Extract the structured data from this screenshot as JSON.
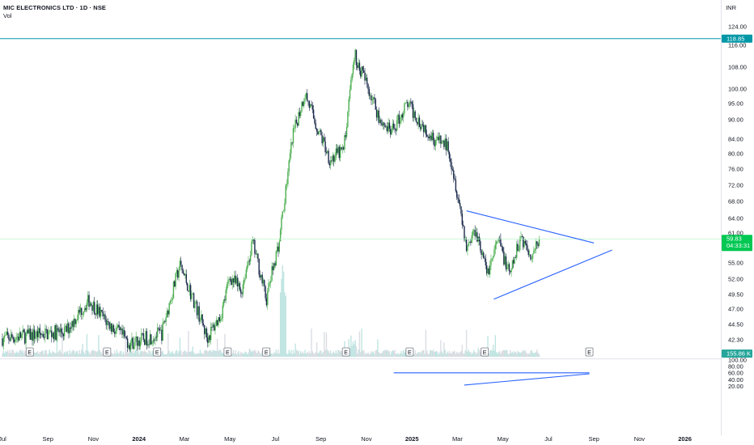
{
  "header": {
    "title": "MIC ELECTRONICS LTD · 1D · NSE",
    "volume_label": "Vol",
    "currency": "INR"
  },
  "colors": {
    "up": "#26a69a",
    "down": "#131722",
    "candle_up": "#4caf50",
    "candle_down": "#1a2a4a",
    "resistance": "#0097a7",
    "trendline": "#2962ff",
    "price_badge": "#00c853",
    "volume_badge": "#26a69a"
  },
  "chart_data": {
    "type": "candlestick",
    "symbol": "MIC ELECTRONICS LTD",
    "interval": "1D",
    "exchange": "NSE",
    "price_axis": {
      "ticks": [
        124.0,
        116.0,
        108.0,
        100.0,
        95.0,
        90.0,
        84.0,
        80.0,
        76.0,
        72.0,
        68.0,
        64.0,
        61.0,
        55.0,
        52.0,
        49.5,
        47.0,
        44.5,
        42.3
      ],
      "tick_labels": [
        "124.00",
        "116.00",
        "108.00",
        "100.00",
        "95.00",
        "90.00",
        "84.00",
        "80.00",
        "76.00",
        "72.00",
        "68.00",
        "64.00",
        "61.00",
        "55.00",
        "52.00",
        "49.50",
        "47.00",
        "44.50",
        "42.30"
      ],
      "range": [
        40.0,
        126.0
      ]
    },
    "oscillator_axis": {
      "ticks": [
        100.0,
        80.0,
        60.0,
        40.0,
        20.0
      ],
      "tick_labels": [
        "100.00",
        "80.00",
        "60.00",
        "40.00",
        "20.00"
      ],
      "range": [
        14,
        104
      ]
    },
    "time_axis": {
      "ticks": [
        "Jul",
        "Sep",
        "Nov",
        "2024",
        "Mar",
        "May",
        "Jul",
        "Sep",
        "Nov",
        "2025",
        "Mar",
        "May",
        "Jul",
        "Sep",
        "Nov",
        "2026"
      ],
      "tick_months": [
        0,
        2,
        4,
        6,
        8,
        10,
        12,
        14,
        16,
        18,
        20,
        22,
        24,
        26,
        28,
        30
      ],
      "bold_ticks": [
        "2024",
        "2025",
        "2026"
      ]
    },
    "last_price": {
      "value": 59.83,
      "label": "59.83",
      "countdown": "04:33:31"
    },
    "resistance": {
      "value": 118.85,
      "label": "118.85"
    },
    "volume_badge": {
      "label": "155.86 K"
    },
    "earnings_markers": {
      "label": "E",
      "months": [
        1.2,
        4.6,
        6.8,
        9.9,
        11.6,
        15.1,
        17.9,
        21.2,
        25.8
      ]
    },
    "key_levels_path": [
      {
        "m": 0.0,
        "p": 42.5
      },
      {
        "m": 2.8,
        "p": 43.5
      },
      {
        "m": 3.8,
        "p": 48.5
      },
      {
        "m": 4.6,
        "p": 44.8
      },
      {
        "m": 5.6,
        "p": 41.8
      },
      {
        "m": 7.0,
        "p": 43.2
      },
      {
        "m": 7.8,
        "p": 54.5
      },
      {
        "m": 8.4,
        "p": 48.5
      },
      {
        "m": 9.0,
        "p": 42.5
      },
      {
        "m": 9.6,
        "p": 46.0
      },
      {
        "m": 10.0,
        "p": 52.5
      },
      {
        "m": 10.5,
        "p": 50.0
      },
      {
        "m": 11.0,
        "p": 59.0
      },
      {
        "m": 11.6,
        "p": 48.5
      },
      {
        "m": 12.2,
        "p": 60.0
      },
      {
        "m": 12.8,
        "p": 86.0
      },
      {
        "m": 13.3,
        "p": 98.5
      },
      {
        "m": 13.8,
        "p": 88.0
      },
      {
        "m": 14.4,
        "p": 78.5
      },
      {
        "m": 15.0,
        "p": 81.0
      },
      {
        "m": 15.5,
        "p": 112.0
      },
      {
        "m": 16.0,
        "p": 102.0
      },
      {
        "m": 16.6,
        "p": 90.0
      },
      {
        "m": 17.1,
        "p": 86.0
      },
      {
        "m": 17.8,
        "p": 95.0
      },
      {
        "m": 18.4,
        "p": 89.0
      },
      {
        "m": 19.0,
        "p": 84.0
      },
      {
        "m": 19.6,
        "p": 82.0
      },
      {
        "m": 20.0,
        "p": 70.0
      },
      {
        "m": 20.4,
        "p": 58.0
      },
      {
        "m": 20.8,
        "p": 62.0
      },
      {
        "m": 21.3,
        "p": 53.0
      },
      {
        "m": 21.8,
        "p": 59.5
      },
      {
        "m": 22.3,
        "p": 52.5
      },
      {
        "m": 22.8,
        "p": 60.5
      },
      {
        "m": 23.2,
        "p": 56.5
      },
      {
        "m": 23.6,
        "p": 59.8
      }
    ],
    "triangle_lines": [
      {
        "from": {
          "m": 20.4,
          "p": 65.8
        },
        "to": {
          "m": 26.0,
          "p": 59.0
        }
      },
      {
        "from": {
          "m": 21.6,
          "p": 48.7
        },
        "to": {
          "m": 26.8,
          "p": 57.6
        }
      }
    ],
    "oscillator_lines": [
      {
        "from": {
          "m": 17.2,
          "v": 61
        },
        "to": {
          "m": 25.8,
          "v": 61
        }
      },
      {
        "from": {
          "m": 20.3,
          "v": 23.5
        },
        "to": {
          "m": 25.8,
          "v": 58
        }
      }
    ]
  }
}
